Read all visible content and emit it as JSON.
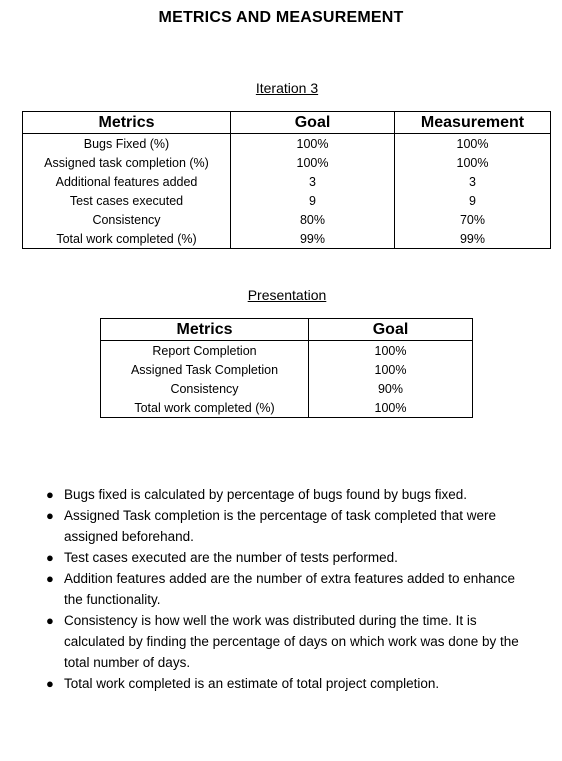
{
  "title": "METRICS AND MEASUREMENT",
  "iteration3": {
    "heading": "Iteration 3",
    "columns": [
      "Metrics",
      "Goal",
      "Measurement"
    ],
    "rows": [
      [
        "Bugs Fixed (%)",
        "100%",
        "100%"
      ],
      [
        "Assigned task completion (%)",
        "100%",
        "100%"
      ],
      [
        "Additional features added",
        "3",
        "3"
      ],
      [
        "Test cases executed",
        "9",
        "9"
      ],
      [
        "Consistency",
        "80%",
        "70%"
      ],
      [
        "Total work completed (%)",
        "99%",
        "99%"
      ]
    ]
  },
  "presentation": {
    "heading": "Presentation",
    "columns": [
      "Metrics",
      "Goal"
    ],
    "rows": [
      [
        "Report Completion",
        "100%"
      ],
      [
        "Assigned Task Completion",
        "100%"
      ],
      [
        "Consistency",
        "90%"
      ],
      [
        "Total work completed (%)",
        "100%"
      ]
    ]
  },
  "notes": [
    "Bugs fixed is calculated by percentage of bugs found by bugs fixed.",
    "Assigned Task completion is the percentage of task completed that were assigned beforehand.",
    "Test cases executed are the number of tests performed.",
    "Addition features added are the number of extra features added to enhance the functionality.",
    "Consistency is how well the work was distributed during the time. It is calculated by finding the percentage of days on which work was done by the total number of days.",
    "Total work completed is an estimate of total project completion."
  ]
}
